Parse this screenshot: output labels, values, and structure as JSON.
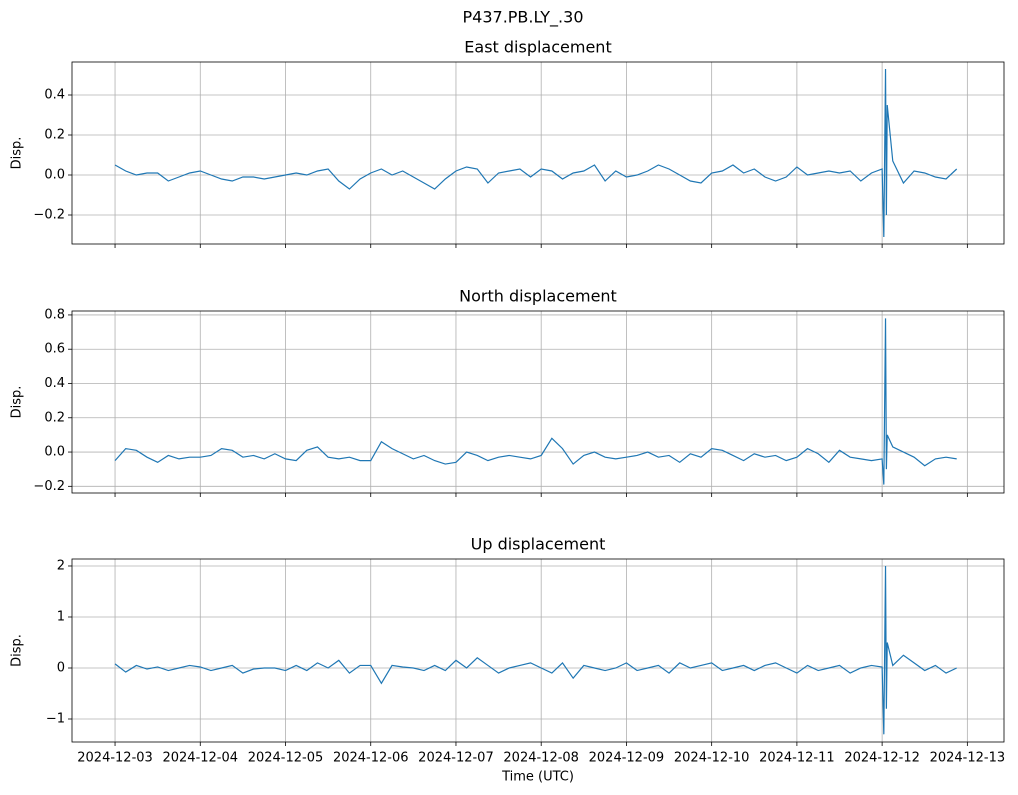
{
  "title": "P437.PB.LY_.30",
  "chart_data": [
    {
      "type": "line",
      "title": "East displacement",
      "ylabel": "Disp.",
      "grid": true,
      "xlim": [
        2.495,
        13.43
      ],
      "ylim": [
        -0.345,
        0.565
      ],
      "xticks": [
        3,
        4,
        5,
        6,
        7,
        8,
        9,
        10,
        11,
        12,
        13
      ],
      "yticks": [
        {
          "value": -0.2,
          "label": "−0.2"
        },
        {
          "value": 0,
          "label": "0.0"
        },
        0.2,
        0.4
      ],
      "x": [
        3,
        3.125,
        3.25,
        3.375,
        3.5,
        3.625,
        3.75,
        3.875,
        4,
        4.125,
        4.25,
        4.375,
        4.5,
        4.625,
        4.75,
        4.875,
        5,
        5.125,
        5.25,
        5.375,
        5.5,
        5.625,
        5.75,
        5.875,
        6,
        6.125,
        6.25,
        6.375,
        6.5,
        6.625,
        6.75,
        6.875,
        7,
        7.125,
        7.25,
        7.375,
        7.5,
        7.625,
        7.75,
        7.875,
        8,
        8.125,
        8.25,
        8.375,
        8.5,
        8.625,
        8.75,
        8.875,
        9,
        9.125,
        9.25,
        9.375,
        9.5,
        9.625,
        9.75,
        9.875,
        10,
        10.125,
        10.25,
        10.375,
        10.5,
        10.625,
        10.75,
        10.875,
        11,
        11.125,
        11.25,
        11.375,
        11.5,
        11.625,
        11.75,
        11.875,
        12,
        12.02,
        12.04,
        12.05,
        12.06,
        12.125,
        12.25,
        12.375,
        12.5,
        12.625,
        12.75,
        12.875
      ],
      "series": [
        {
          "name": "East",
          "color": "#1f77b4",
          "values": [
            0.05,
            0.02,
            0.0,
            0.01,
            0.01,
            -0.03,
            -0.01,
            0.01,
            0.02,
            0.0,
            -0.02,
            -0.03,
            -0.01,
            -0.01,
            -0.02,
            -0.01,
            0.0,
            0.01,
            0.0,
            0.02,
            0.03,
            -0.03,
            -0.07,
            -0.02,
            0.01,
            0.03,
            0.0,
            0.02,
            -0.01,
            -0.04,
            -0.07,
            -0.02,
            0.02,
            0.04,
            0.03,
            -0.04,
            0.01,
            0.02,
            0.03,
            -0.01,
            0.03,
            0.02,
            -0.02,
            0.01,
            0.02,
            0.05,
            -0.03,
            0.02,
            -0.01,
            0.0,
            0.02,
            0.05,
            0.03,
            0.0,
            -0.03,
            -0.04,
            0.01,
            0.02,
            0.05,
            0.01,
            0.03,
            -0.01,
            -0.03,
            -0.01,
            0.04,
            0.0,
            0.01,
            0.02,
            0.01,
            0.02,
            -0.03,
            0.01,
            0.03,
            -0.31,
            0.53,
            -0.2,
            0.35,
            0.07,
            -0.04,
            0.02,
            0.01,
            -0.01,
            -0.02,
            0.03
          ]
        }
      ]
    },
    {
      "type": "line",
      "title": "North displacement",
      "ylabel": "Disp.",
      "grid": true,
      "xlim": [
        2.495,
        13.43
      ],
      "ylim": [
        -0.239,
        0.823
      ],
      "xticks": [
        3,
        4,
        5,
        6,
        7,
        8,
        9,
        10,
        11,
        12,
        13
      ],
      "yticks": [
        {
          "value": -0.2,
          "label": "−0.2"
        },
        {
          "value": 0,
          "label": "0.0"
        },
        0.2,
        0.4,
        0.6,
        0.8
      ],
      "x": [
        3,
        3.125,
        3.25,
        3.375,
        3.5,
        3.625,
        3.75,
        3.875,
        4,
        4.125,
        4.25,
        4.375,
        4.5,
        4.625,
        4.75,
        4.875,
        5,
        5.125,
        5.25,
        5.375,
        5.5,
        5.625,
        5.75,
        5.875,
        6,
        6.125,
        6.25,
        6.375,
        6.5,
        6.625,
        6.75,
        6.875,
        7,
        7.125,
        7.25,
        7.375,
        7.5,
        7.625,
        7.75,
        7.875,
        8,
        8.125,
        8.25,
        8.375,
        8.5,
        8.625,
        8.75,
        8.875,
        9,
        9.125,
        9.25,
        9.375,
        9.5,
        9.625,
        9.75,
        9.875,
        10,
        10.125,
        10.25,
        10.375,
        10.5,
        10.625,
        10.75,
        10.875,
        11,
        11.125,
        11.25,
        11.375,
        11.5,
        11.625,
        11.75,
        11.875,
        12,
        12.02,
        12.04,
        12.05,
        12.06,
        12.125,
        12.25,
        12.375,
        12.5,
        12.625,
        12.75,
        12.875
      ],
      "series": [
        {
          "name": "North",
          "color": "#1f77b4",
          "values": [
            -0.05,
            0.02,
            0.01,
            -0.03,
            -0.06,
            -0.02,
            -0.04,
            -0.03,
            -0.03,
            -0.02,
            0.02,
            0.01,
            -0.03,
            -0.02,
            -0.04,
            -0.01,
            -0.04,
            -0.05,
            0.01,
            0.03,
            -0.03,
            -0.04,
            -0.03,
            -0.05,
            -0.05,
            0.06,
            0.02,
            -0.01,
            -0.04,
            -0.02,
            -0.05,
            -0.07,
            -0.06,
            0.0,
            -0.02,
            -0.05,
            -0.03,
            -0.02,
            -0.03,
            -0.04,
            -0.02,
            0.08,
            0.02,
            -0.07,
            -0.02,
            0.0,
            -0.03,
            -0.04,
            -0.03,
            -0.02,
            0.0,
            -0.03,
            -0.02,
            -0.06,
            -0.01,
            -0.03,
            0.02,
            0.01,
            -0.02,
            -0.05,
            -0.01,
            -0.03,
            -0.02,
            -0.05,
            -0.03,
            0.02,
            -0.01,
            -0.06,
            0.01,
            -0.03,
            -0.04,
            -0.05,
            -0.04,
            -0.19,
            0.78,
            -0.1,
            0.1,
            0.03,
            0.0,
            -0.03,
            -0.08,
            -0.04,
            -0.03,
            -0.04
          ]
        }
      ]
    },
    {
      "type": "line",
      "title": "Up displacement",
      "ylabel": "Disp.",
      "xlabel": "Time (UTC)",
      "grid": true,
      "xlim": [
        2.495,
        13.43
      ],
      "ylim": [
        -1.451,
        2.137
      ],
      "xticks": [
        {
          "value": 3,
          "label": "2024-12-03"
        },
        {
          "value": 4,
          "label": "2024-12-04"
        },
        {
          "value": 5,
          "label": "2024-12-05"
        },
        {
          "value": 6,
          "label": "2024-12-06"
        },
        {
          "value": 7,
          "label": "2024-12-07"
        },
        {
          "value": 8,
          "label": "2024-12-08"
        },
        {
          "value": 9,
          "label": "2024-12-09"
        },
        {
          "value": 10,
          "label": "2024-12-10"
        },
        {
          "value": 11,
          "label": "2024-12-11"
        },
        {
          "value": 12,
          "label": "2024-12-12"
        },
        {
          "value": 13,
          "label": "2024-12-13"
        }
      ],
      "yticks": [
        {
          "value": -1,
          "label": "−1"
        },
        0,
        1,
        2
      ],
      "x": [
        3,
        3.125,
        3.25,
        3.375,
        3.5,
        3.625,
        3.75,
        3.875,
        4,
        4.125,
        4.25,
        4.375,
        4.5,
        4.625,
        4.75,
        4.875,
        5,
        5.125,
        5.25,
        5.375,
        5.5,
        5.625,
        5.75,
        5.875,
        6,
        6.125,
        6.25,
        6.375,
        6.5,
        6.625,
        6.75,
        6.875,
        7,
        7.125,
        7.25,
        7.375,
        7.5,
        7.625,
        7.75,
        7.875,
        8,
        8.125,
        8.25,
        8.375,
        8.5,
        8.625,
        8.75,
        8.875,
        9,
        9.125,
        9.25,
        9.375,
        9.5,
        9.625,
        9.75,
        9.875,
        10,
        10.125,
        10.25,
        10.375,
        10.5,
        10.625,
        10.75,
        10.875,
        11,
        11.125,
        11.25,
        11.375,
        11.5,
        11.625,
        11.75,
        11.875,
        12,
        12.02,
        12.04,
        12.05,
        12.06,
        12.125,
        12.25,
        12.375,
        12.5,
        12.625,
        12.75,
        12.875
      ],
      "series": [
        {
          "name": "Up",
          "color": "#1f77b4",
          "values": [
            0.08,
            -0.08,
            0.05,
            -0.02,
            0.02,
            -0.05,
            0.0,
            0.05,
            0.02,
            -0.05,
            0.0,
            0.05,
            -0.1,
            -0.02,
            0.0,
            0.0,
            -0.05,
            0.05,
            -0.05,
            0.1,
            0.0,
            0.15,
            -0.1,
            0.05,
            0.05,
            -0.3,
            0.05,
            0.02,
            0.0,
            -0.05,
            0.05,
            -0.05,
            0.15,
            0.0,
            0.2,
            0.05,
            -0.1,
            0.0,
            0.05,
            0.1,
            0.0,
            -0.1,
            0.1,
            -0.2,
            0.05,
            0.0,
            -0.05,
            0.0,
            0.1,
            -0.05,
            0.0,
            0.05,
            -0.1,
            0.1,
            0.0,
            0.05,
            0.1,
            -0.05,
            0.0,
            0.05,
            -0.05,
            0.05,
            0.1,
            0.0,
            -0.1,
            0.05,
            -0.05,
            0.0,
            0.05,
            -0.1,
            0.0,
            0.05,
            0.02,
            -1.3,
            2.0,
            -0.8,
            0.5,
            0.05,
            0.25,
            0.1,
            -0.05,
            0.05,
            -0.1,
            0.0
          ]
        }
      ]
    }
  ]
}
